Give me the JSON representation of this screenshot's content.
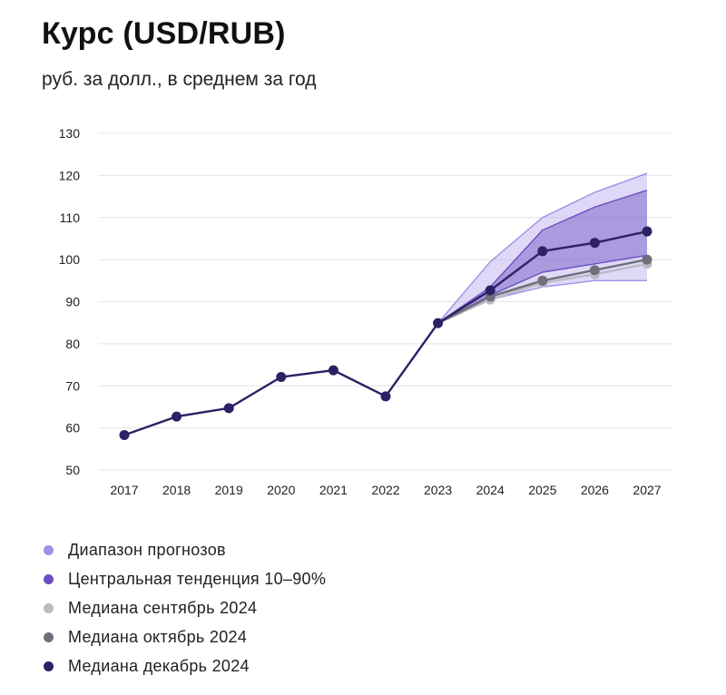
{
  "header": {
    "title": "Курс (USD/RUB)",
    "subtitle": "руб. за долл., в среднем за год"
  },
  "colors": {
    "range": "#a48ee6",
    "central": "#6a4fc0",
    "median_sep": "#b9bcc6",
    "median_oct": "#6d7079",
    "median_dec": "#2d2065",
    "grid": "#e4e4ec"
  },
  "legend": [
    {
      "label": "Диапазон прогнозов",
      "color": "#a48ee6"
    },
    {
      "label": "Центральная тенденция 10–90%",
      "color": "#6a4fc0"
    },
    {
      "label": "Медиана сентябрь 2024",
      "color": "#b9bcc6"
    },
    {
      "label": "Медиана октябрь 2024",
      "color": "#6d7079"
    },
    {
      "label": "Медиана декабрь 2024",
      "color": "#2d2065"
    }
  ],
  "chart_data": {
    "type": "line",
    "title": "Курс (USD/RUB)",
    "subtitle": "руб. за долл., в среднем за год",
    "x": [
      "2017",
      "2018",
      "2019",
      "2020",
      "2021",
      "2022",
      "2023",
      "2024",
      "2025",
      "2026",
      "2027"
    ],
    "ylim": [
      50,
      130
    ],
    "yticks": [
      50,
      60,
      70,
      80,
      90,
      100,
      110,
      120,
      130
    ],
    "grid": true,
    "legend_position": "bottom",
    "bands": [
      {
        "name": "Диапазон прогнозов",
        "x": [
          "2023",
          "2024",
          "2025",
          "2026",
          "2027"
        ],
        "low": [
          84.9,
          90.5,
          93.5,
          95.0,
          95.0
        ],
        "high": [
          84.9,
          99.5,
          110.0,
          116.0,
          120.5
        ]
      },
      {
        "name": "Центральная тенденция 10–90%",
        "x": [
          "2023",
          "2024",
          "2025",
          "2026",
          "2027"
        ],
        "low": [
          84.9,
          91.5,
          97.0,
          99.0,
          101.0
        ],
        "high": [
          84.9,
          93.5,
          107.0,
          112.5,
          116.5
        ]
      }
    ],
    "series": [
      {
        "name": "Медиана сентябрь 2024",
        "x": [
          "2023",
          "2024",
          "2025",
          "2026",
          "2027"
        ],
        "values": [
          84.9,
          90.5,
          94.5,
          96.5,
          99.0
        ]
      },
      {
        "name": "Медиана октябрь 2024",
        "x": [
          "2023",
          "2024",
          "2025",
          "2026",
          "2027"
        ],
        "values": [
          84.9,
          91.2,
          95.0,
          97.5,
          100.0
        ]
      },
      {
        "name": "Медиана декабрь 2024",
        "x": [
          "2017",
          "2018",
          "2019",
          "2020",
          "2021",
          "2022",
          "2023",
          "2024",
          "2025",
          "2026",
          "2027"
        ],
        "values": [
          58.3,
          62.7,
          64.7,
          72.1,
          73.7,
          67.5,
          84.9,
          92.7,
          102.0,
          104.0,
          106.7
        ]
      }
    ]
  }
}
